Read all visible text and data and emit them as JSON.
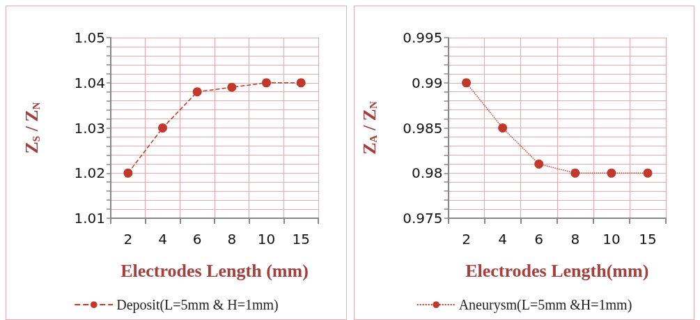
{
  "chart_data": [
    {
      "type": "line",
      "xlabel": "Electrodes Length (mm)",
      "ylabel": "Z$_{S}$ / Z$_{N}$",
      "categories": [
        "2",
        "4",
        "6",
        "8",
        "10",
        "15"
      ],
      "series": [
        {
          "name": "Deposit(L=5mm & H=1mm)",
          "color": "#c0392b",
          "values": [
            1.02,
            1.03,
            1.038,
            1.039,
            1.04,
            1.04
          ]
        }
      ],
      "ylim": [
        1.01,
        1.05
      ],
      "yticks": [
        1.01,
        {
          "value": 1.012,
          "label": null
        },
        {
          "value": 1.014,
          "label": null
        },
        {
          "value": 1.016,
          "label": null
        },
        {
          "value": 1.018,
          "label": null
        },
        1.02,
        {
          "value": 1.022,
          "label": null
        },
        {
          "value": 1.024,
          "label": null
        },
        {
          "value": 1.026,
          "label": null
        },
        {
          "value": 1.028,
          "label": null
        },
        1.03,
        {
          "value": 1.032,
          "label": null
        },
        {
          "value": 1.034,
          "label": null
        },
        {
          "value": 1.036,
          "label": null
        },
        {
          "value": 1.038,
          "label": null
        },
        1.04,
        {
          "value": 1.042,
          "label": null
        },
        {
          "value": 1.044,
          "label": null
        },
        {
          "value": 1.046,
          "label": null
        },
        {
          "value": 1.048,
          "label": null
        },
        1.05
      ],
      "grid": true,
      "legend": "bottom",
      "marker": "circle",
      "line_style": "dashed"
    },
    {
      "type": "line",
      "xlabel": "Electrodes Length(mm)",
      "ylabel": "Z$_{A}$ / Z$_{N}$",
      "categories": [
        "2",
        "4",
        "6",
        "8",
        "10",
        "15"
      ],
      "series": [
        {
          "name": "Aneurysm(L=5mm &H=1mm)",
          "color": "#c0392b",
          "values": [
            0.99,
            0.985,
            0.981,
            0.98,
            0.98,
            0.98
          ]
        }
      ],
      "ylim": [
        0.975,
        0.995
      ],
      "yticks": [
        0.975,
        {
          "value": 0.976,
          "label": null
        },
        {
          "value": 0.977,
          "label": null
        },
        {
          "value": 0.978,
          "label": null
        },
        {
          "value": 0.979,
          "label": null
        },
        0.98,
        {
          "value": 0.981,
          "label": null
        },
        {
          "value": 0.982,
          "label": null
        },
        {
          "value": 0.983,
          "label": null
        },
        {
          "value": 0.984,
          "label": null
        },
        0.985,
        {
          "value": 0.986,
          "label": null
        },
        {
          "value": 0.987,
          "label": null
        },
        {
          "value": 0.988,
          "label": null
        },
        {
          "value": 0.989,
          "label": null
        },
        0.99,
        {
          "value": 0.991,
          "label": null
        },
        {
          "value": 0.992,
          "label": null
        },
        {
          "value": 0.993,
          "label": null
        },
        {
          "value": 0.994,
          "label": null
        },
        0.995
      ],
      "grid": true,
      "legend": "bottom",
      "marker": "circle",
      "line_style": "dotted"
    }
  ]
}
